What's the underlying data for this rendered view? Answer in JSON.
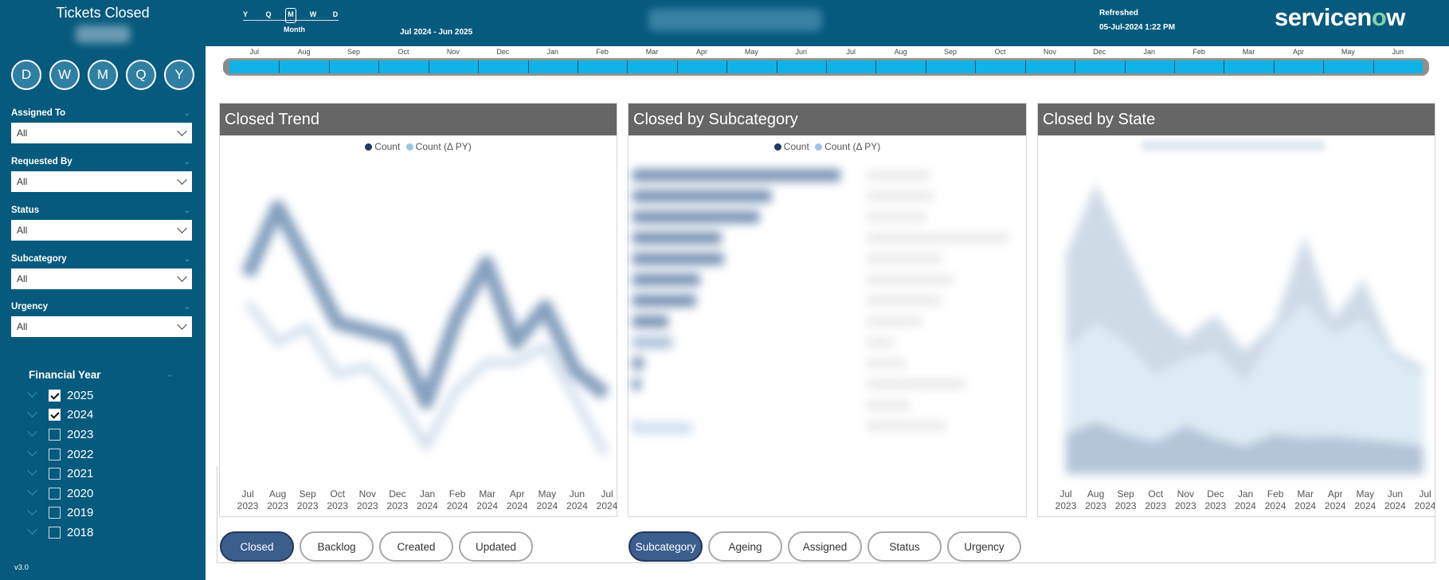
{
  "sidebar": {
    "title": "Tickets Closed",
    "period_buttons": [
      "D",
      "W",
      "M",
      "Q",
      "Y"
    ],
    "filters": [
      {
        "label": "Assigned To",
        "value": "All"
      },
      {
        "label": "Requested By",
        "value": "All"
      },
      {
        "label": "Status",
        "value": "All"
      },
      {
        "label": "Subcategory",
        "value": "All"
      },
      {
        "label": "Urgency",
        "value": "All"
      }
    ],
    "financial_year": {
      "title": "Financial Year",
      "years": [
        {
          "label": "2025",
          "checked": true
        },
        {
          "label": "2024",
          "checked": true
        },
        {
          "label": "2023",
          "checked": false
        },
        {
          "label": "2022",
          "checked": false
        },
        {
          "label": "2021",
          "checked": false
        },
        {
          "label": "2020",
          "checked": false
        },
        {
          "label": "2019",
          "checked": false
        },
        {
          "label": "2018",
          "checked": false
        }
      ]
    },
    "version": "v3.0"
  },
  "header": {
    "hierarchy": {
      "levels": [
        "Y",
        "Q",
        "M",
        "W",
        "D"
      ],
      "selected": "M",
      "caption": "Month"
    },
    "date_range": "Jul 2024 - Jun 2025",
    "refreshed_label": "Refreshed",
    "refreshed_value": "05-Jul-2024 1:22 PM",
    "logo": "servicenow"
  },
  "timeline": {
    "months": [
      "Jul",
      "Aug",
      "Sep",
      "Oct",
      "Nov",
      "Dec",
      "Jan",
      "Feb",
      "Mar",
      "Apr",
      "May",
      "Jun",
      "Jul",
      "Aug",
      "Sep",
      "Oct",
      "Nov",
      "Dec",
      "Jan",
      "Feb",
      "Mar",
      "Apr",
      "May",
      "Jun"
    ]
  },
  "panels": {
    "trend": {
      "title": "Closed Trend",
      "legend": [
        {
          "label": "Count",
          "color": "#1f3864"
        },
        {
          "label": "Count (Δ PY)",
          "color": "#9dc3e6"
        }
      ],
      "x_labels": [
        {
          "m": "Jul",
          "y": "2023"
        },
        {
          "m": "Aug",
          "y": "2023"
        },
        {
          "m": "Sep",
          "y": "2023"
        },
        {
          "m": "Oct",
          "y": "2023"
        },
        {
          "m": "Nov",
          "y": "2023"
        },
        {
          "m": "Dec",
          "y": "2023"
        },
        {
          "m": "Jan",
          "y": "2024"
        },
        {
          "m": "Feb",
          "y": "2024"
        },
        {
          "m": "Mar",
          "y": "2024"
        },
        {
          "m": "Apr",
          "y": "2024"
        },
        {
          "m": "May",
          "y": "2024"
        },
        {
          "m": "Jun",
          "y": "2024"
        },
        {
          "m": "Jul",
          "y": "2024"
        }
      ]
    },
    "subcategory": {
      "title": "Closed by Subcategory",
      "legend": [
        {
          "label": "Count",
          "color": "#1f3864"
        },
        {
          "label": "Count (Δ PY)",
          "color": "#9dc3e6"
        }
      ]
    },
    "state": {
      "title": "Closed by State",
      "x_labels": [
        {
          "m": "Jul",
          "y": "2023"
        },
        {
          "m": "Aug",
          "y": "2023"
        },
        {
          "m": "Sep",
          "y": "2023"
        },
        {
          "m": "Oct",
          "y": "2023"
        },
        {
          "m": "Nov",
          "y": "2023"
        },
        {
          "m": "Dec",
          "y": "2023"
        },
        {
          "m": "Jan",
          "y": "2024"
        },
        {
          "m": "Feb",
          "y": "2024"
        },
        {
          "m": "Mar",
          "y": "2024"
        },
        {
          "m": "Apr",
          "y": "2024"
        },
        {
          "m": "May",
          "y": "2024"
        },
        {
          "m": "Jun",
          "y": "2024"
        },
        {
          "m": "Jul",
          "y": "2024"
        }
      ]
    }
  },
  "left_buttons": [
    {
      "label": "Closed",
      "active": true
    },
    {
      "label": "Backlog",
      "active": false
    },
    {
      "label": "Created",
      "active": false
    },
    {
      "label": "Updated",
      "active": false
    }
  ],
  "right_buttons": [
    {
      "label": "Subcategory",
      "active": true
    },
    {
      "label": "Ageing",
      "active": false
    },
    {
      "label": "Assigned",
      "active": false
    },
    {
      "label": "Status",
      "active": false
    },
    {
      "label": "Urgency",
      "active": false
    }
  ]
}
